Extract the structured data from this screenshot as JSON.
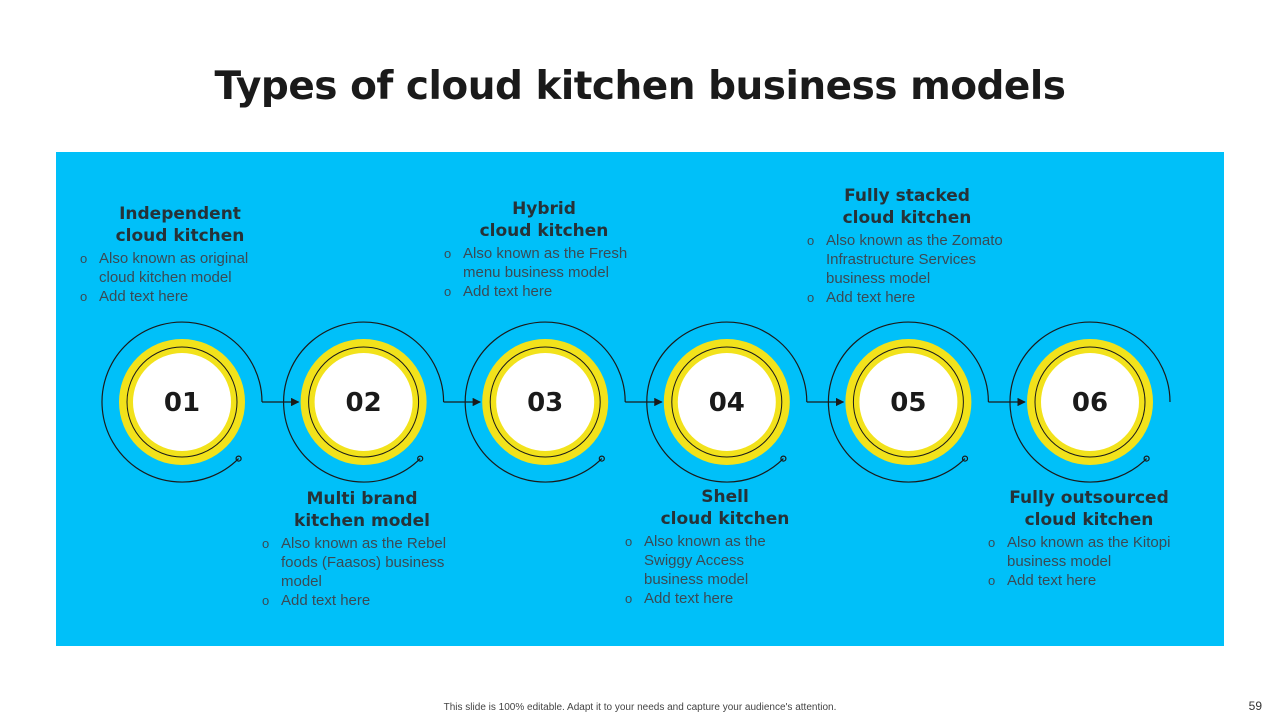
{
  "title": "Types of cloud kitchen business models",
  "colors": {
    "panel": "#00c0f9",
    "ring_yellow": "#f2e21b",
    "inner_white": "#ffffff",
    "line": "#1a1a1a"
  },
  "steps": [
    {
      "number": "01",
      "heading": "Independent\ncloud kitchen",
      "bullets": [
        "Also known as original cloud kitchen model",
        "Add text here"
      ]
    },
    {
      "number": "02",
      "heading": "Multi brand\nkitchen model",
      "bullets": [
        "Also known as the Rebel foods (Faasos) business model",
        "Add text here"
      ]
    },
    {
      "number": "03",
      "heading": "Hybrid\ncloud kitchen",
      "bullets": [
        "Also known as the Fresh menu business model",
        "Add text here"
      ]
    },
    {
      "number": "04",
      "heading": "Shell\ncloud kitchen",
      "bullets": [
        "Also known as the Swiggy Access business model",
        "Add text here"
      ]
    },
    {
      "number": "05",
      "heading": "Fully stacked\ncloud kitchen",
      "bullets": [
        "Also known as the Zomato Infrastructure Services business model",
        "Add text here"
      ]
    },
    {
      "number": "06",
      "heading": "Fully outsourced\ncloud kitchen",
      "bullets": [
        "Also known as the Kitopi business model",
        "Add text here"
      ]
    }
  ],
  "footer": "This slide is 100% editable. Adapt it to your needs and capture your audience's attention.",
  "page_number": "59"
}
